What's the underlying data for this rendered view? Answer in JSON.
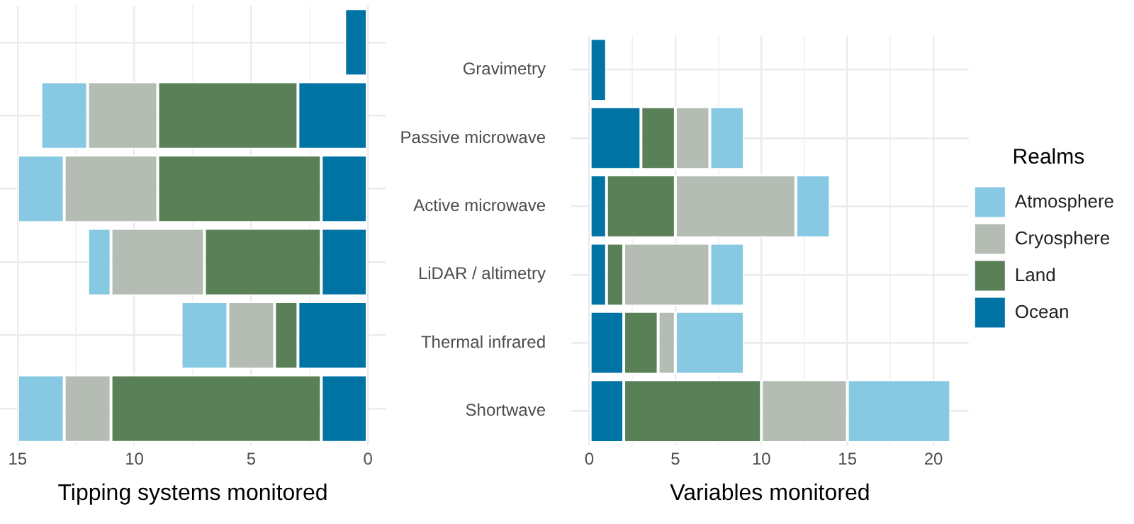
{
  "chart_data": [
    {
      "type": "bar",
      "orientation": "horizontal",
      "stacked": true,
      "xlabel": "Tipping systems monitored",
      "series": [
        {
          "color": "#0073a5",
          "values": [
            1,
            3,
            2,
            2,
            3,
            2
          ]
        },
        {
          "color": "#5a8058",
          "values": [
            0,
            6,
            7,
            5,
            1,
            9
          ]
        },
        {
          "color": "#b4bcb4",
          "values": [
            0,
            3,
            4,
            4,
            2,
            2
          ]
        },
        {
          "color": "#87c9e3",
          "values": [
            0,
            2,
            2,
            1,
            2,
            2
          ]
        }
      ],
      "xlim": [
        15.75,
        -0.75
      ],
      "xticks": [
        15,
        {
          "value": 12.5,
          "label": null
        },
        10,
        {
          "value": 7.5,
          "label": null
        },
        5,
        {
          "value": 2.5,
          "label": null
        },
        0
      ],
      "grid": true,
      "tick_labels": "x"
    },
    {
      "type": "bar",
      "orientation": "horizontal",
      "stacked": true,
      "xlabel": "Variables monitored",
      "legend_title": "Realms",
      "legend": "right",
      "categories": [
        "Gravimetry",
        "Passive microwave",
        "Active microwave",
        "LiDAR / altimetry",
        "Thermal infrared",
        "Shortwave"
      ],
      "series": [
        {
          "name": "Ocean",
          "color": "#0073a5",
          "values": [
            1,
            3,
            1,
            1,
            2,
            2
          ]
        },
        {
          "name": "Land",
          "color": "#5a8058",
          "values": [
            0,
            2,
            4,
            1,
            2,
            8
          ]
        },
        {
          "name": "Cryosphere",
          "color": "#b4bcb4",
          "values": [
            0,
            2,
            7,
            5,
            1,
            5
          ]
        },
        {
          "name": "Atmosphere",
          "color": "#87c9e3",
          "values": [
            0,
            2,
            2,
            2,
            4,
            6
          ]
        }
      ],
      "xlim": [
        -1.05,
        22.05
      ],
      "xticks": [
        0,
        {
          "value": 2.5,
          "label": null
        },
        5,
        {
          "value": 7.5,
          "label": null
        },
        10,
        {
          "value": 12.5,
          "label": null
        },
        15,
        {
          "value": 17.5,
          "label": null
        },
        20
      ],
      "grid": true
    }
  ]
}
